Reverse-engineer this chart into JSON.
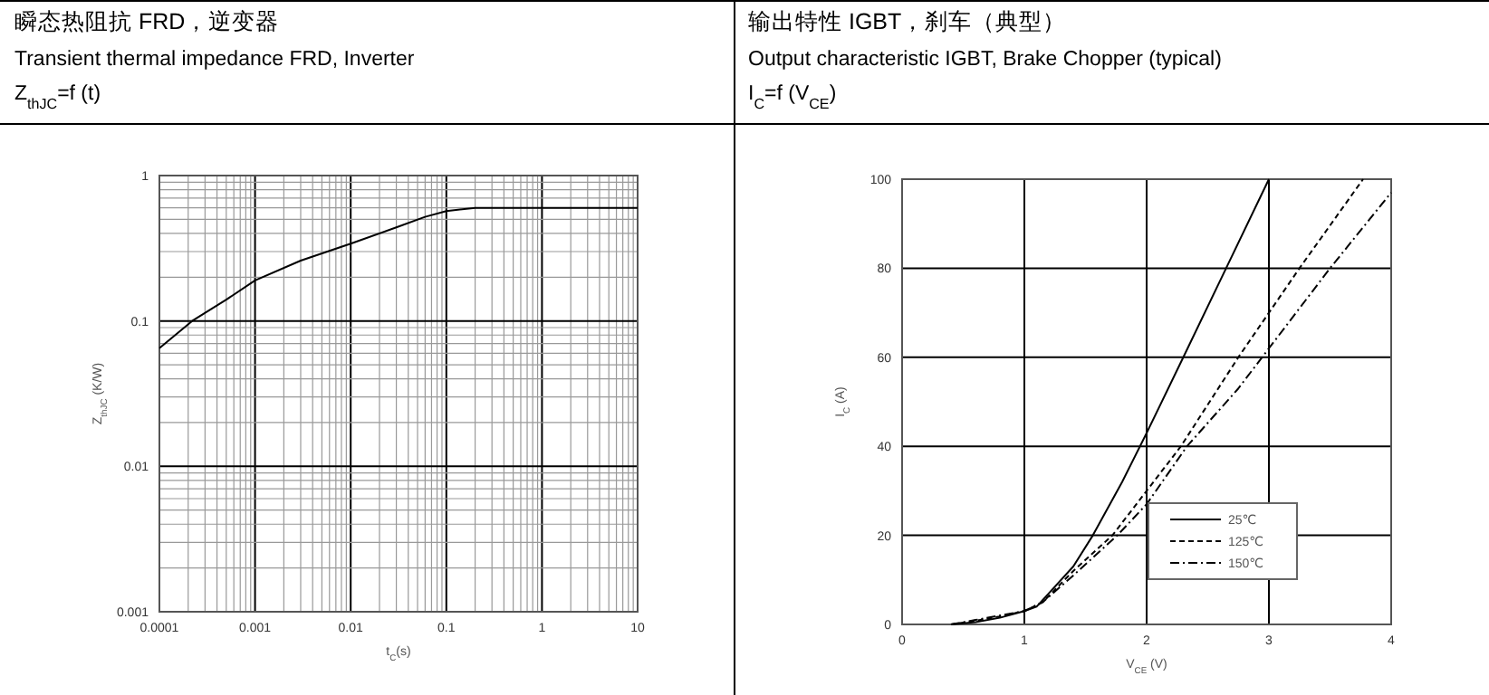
{
  "chart_data": [
    {
      "type": "line",
      "title": "瞬态热阻抗 FRD，逆变器",
      "subtitle": "Transient thermal impedance FRD, Inverter",
      "annotations": [
        "Z$_{thJC}$=f (t)"
      ],
      "xlabel": "t$_{C}$(s)",
      "ylabel": "Z$_{thJC}$ (K/W)",
      "log": "xy",
      "grid": true,
      "xlim": [
        0.0001,
        10
      ],
      "ylim": [
        0.001,
        1
      ],
      "xticks": [
        0.0001,
        0.001,
        0.01,
        0.1,
        1,
        10
      ],
      "yticks": [
        0.001,
        0.01,
        0.1,
        1
      ],
      "series": [
        {
          "color": "#000000",
          "line_style": "solid",
          "x": [
            0.0001,
            0.00022,
            0.0005,
            0.001,
            0.003,
            0.01,
            0.03,
            0.06,
            0.1,
            0.2,
            1,
            10
          ],
          "values": [
            0.065,
            0.1,
            0.14,
            0.19,
            0.26,
            0.34,
            0.44,
            0.52,
            0.57,
            0.6,
            0.6,
            0.6
          ]
        }
      ]
    },
    {
      "type": "line",
      "title": "输出特性 IGBT，刹车（典型）",
      "subtitle": "Output characteristic IGBT, Brake Chopper (typical)",
      "annotations": [
        "I$_{C}$=f (V$_{CE}$)"
      ],
      "xlabel": "V$_{CE}$ (V)",
      "ylabel": "I$_{C}$ (A)",
      "grid": true,
      "legend": "bottom right",
      "xlim": [
        0,
        4
      ],
      "ylim": [
        0,
        100
      ],
      "xticks": [
        0,
        1,
        2,
        3,
        4
      ],
      "yticks": [
        0,
        20,
        40,
        60,
        80,
        100
      ],
      "series": [
        {
          "name": "25℃",
          "color": "#000000",
          "line_style": "solid",
          "x": [
            0.4,
            0.6,
            0.8,
            1.0,
            1.1,
            1.2,
            1.4,
            1.56,
            1.8,
            2.0,
            2.3,
            2.65,
            3.0
          ],
          "values": [
            0,
            0.5,
            1.5,
            3,
            4,
            7,
            13,
            20,
            32,
            43,
            60,
            80,
            100
          ]
        },
        {
          "name": "125℃",
          "color": "#000000",
          "line_style": "dashed",
          "x": [
            0.4,
            0.6,
            0.8,
            1.0,
            1.15,
            1.4,
            1.72,
            2.0,
            2.28,
            2.75,
            3.0,
            3.25,
            3.77
          ],
          "values": [
            0,
            0.8,
            1.8,
            3,
            5,
            12,
            20,
            30,
            40,
            60,
            70,
            80,
            100
          ]
        },
        {
          "name": "150℃",
          "color": "#000000",
          "line_style": "dashdot",
          "x": [
            0.4,
            0.6,
            1.0,
            1.15,
            1.4,
            1.76,
            2.0,
            2.33,
            2.75,
            3.0,
            3.5,
            4.0
          ],
          "values": [
            0,
            1,
            3,
            5,
            11,
            20,
            27,
            40,
            53,
            62,
            80,
            97
          ]
        }
      ]
    }
  ]
}
